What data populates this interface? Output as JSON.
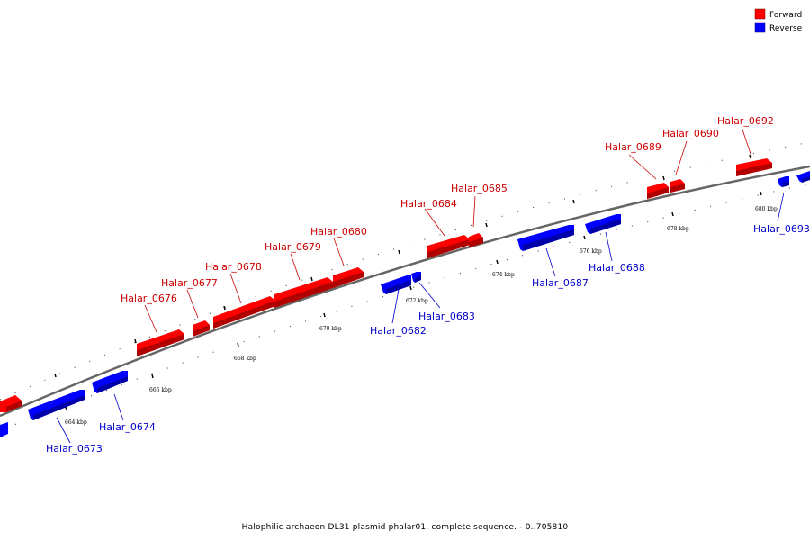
{
  "caption": "Halophilic archaeon DL31 plasmid phalar01, complete sequence. - 0..705810",
  "legend": {
    "forward_label": "Forward",
    "reverse_label": "Reverse",
    "forward_color": "#ff0000",
    "reverse_color": "#0000ff"
  },
  "label_colors": {
    "forward": "#cc0000",
    "reverse": "#0000cc"
  },
  "ticks": [
    "664 kbp",
    "666 kbp",
    "668 kbp",
    "670 kbp",
    "672 kbp",
    "674 kbp",
    "676 kbp",
    "678 kbp",
    "680 kbp"
  ],
  "genes": [
    {
      "name": "Halar_0673",
      "strand": "reverse"
    },
    {
      "name": "Halar_0674",
      "strand": "reverse"
    },
    {
      "name": "Halar_0676",
      "strand": "forward"
    },
    {
      "name": "Halar_0677",
      "strand": "forward"
    },
    {
      "name": "Halar_0678",
      "strand": "forward"
    },
    {
      "name": "Halar_0679",
      "strand": "forward"
    },
    {
      "name": "Halar_0680",
      "strand": "forward"
    },
    {
      "name": "Halar_0682",
      "strand": "reverse"
    },
    {
      "name": "Halar_0683",
      "strand": "reverse"
    },
    {
      "name": "Halar_0684",
      "strand": "forward"
    },
    {
      "name": "Halar_0685",
      "strand": "forward"
    },
    {
      "name": "Halar_0687",
      "strand": "reverse"
    },
    {
      "name": "Halar_0688",
      "strand": "reverse"
    },
    {
      "name": "Halar_0689",
      "strand": "forward"
    },
    {
      "name": "Halar_0690",
      "strand": "forward"
    },
    {
      "name": "Halar_0692",
      "strand": "forward"
    },
    {
      "name": "Halar_0693",
      "strand": "reverse"
    }
  ]
}
